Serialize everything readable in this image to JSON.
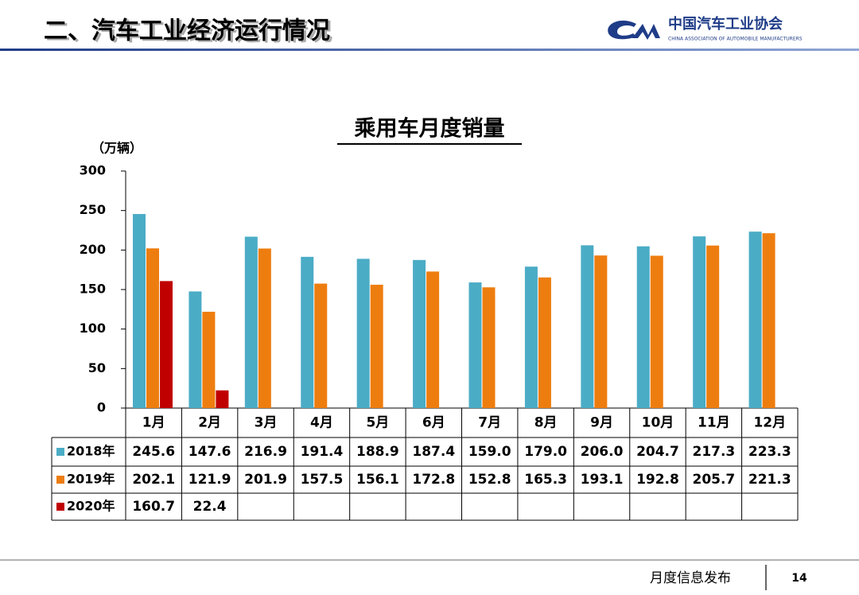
{
  "header": {
    "title": "二、汽车工业经济运行情况",
    "org_name": "中国汽车工业协会",
    "org_name_en": "CHINA ASSOCIATION OF AUTOMOBILE MANUFACTURERS"
  },
  "chart_data": {
    "type": "bar",
    "title": "乘用车月度销量",
    "y_label": "（万辆）",
    "categories": [
      "1月",
      "2月",
      "3月",
      "4月",
      "5月",
      "6月",
      "7月",
      "8月",
      "9月",
      "10月",
      "11月",
      "12月"
    ],
    "series": [
      {
        "name": "2018年",
        "color": "#4bacc6",
        "values": [
          245.6,
          147.6,
          216.9,
          191.4,
          188.9,
          187.4,
          159.0,
          179.0,
          206.0,
          204.7,
          217.3,
          223.3
        ],
        "value_labels": [
          "245.6",
          "147.6",
          "216.9",
          "191.4",
          "188.9",
          "187.4",
          "159.0",
          "179.0",
          "206.0",
          "204.7",
          "217.3",
          "223.3"
        ]
      },
      {
        "name": "2019年",
        "color": "#ee7d0f",
        "values": [
          202.1,
          121.9,
          201.9,
          157.5,
          156.1,
          172.8,
          152.8,
          165.3,
          193.1,
          192.8,
          205.7,
          221.3
        ],
        "value_labels": [
          "202.1",
          "121.9",
          "201.9",
          "157.5",
          "156.1",
          "172.8",
          "152.8",
          "165.3",
          "193.1",
          "192.8",
          "205.7",
          "221.3"
        ]
      },
      {
        "name": "2020年",
        "color": "#c00000",
        "values": [
          160.7,
          22.4,
          null,
          null,
          null,
          null,
          null,
          null,
          null,
          null,
          null,
          null
        ],
        "value_labels": [
          "160.7",
          "22.4",
          null,
          null,
          null,
          null,
          null,
          null,
          null,
          null,
          null,
          null
        ]
      }
    ],
    "ylim": [
      0,
      300
    ],
    "yticks": [
      0,
      50,
      100,
      150,
      200,
      250,
      300
    ]
  },
  "footer": {
    "text": "月度信息发布",
    "page": "14"
  }
}
